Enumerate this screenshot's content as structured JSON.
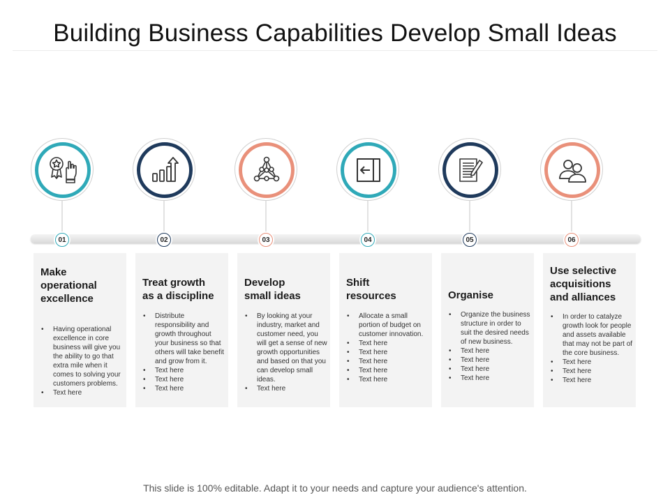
{
  "title": "Building Business Capabilities Develop Small Ideas",
  "footer": "This slide is 100% editable. Adapt it to your needs and capture your audience's attention.",
  "colors": {
    "teal": "#2fa9b8",
    "navy": "#1f3a5c",
    "salmon": "#e9907a",
    "card": "#f3f3f3"
  },
  "steps": [
    {
      "number": "01",
      "icon": "award-badge-icon",
      "heading": [
        "Make",
        "operational",
        "excellence"
      ],
      "description": "Having operational excellence in core business will give you the ability to go that extra mile when it comes to solving your customers problems.",
      "extras": [
        "Text here"
      ]
    },
    {
      "number": "02",
      "icon": "growth-chart-icon",
      "heading": [
        "Treat growth",
        "as a discipline"
      ],
      "description": "Distribute responsibility and growth throughout your business so that others will take benefit and grow from it.",
      "extras": [
        "Text here",
        "Text here",
        "Text here"
      ]
    },
    {
      "number": "03",
      "icon": "network-triangle-icon",
      "heading": [
        "Develop",
        "small ideas"
      ],
      "description": "By looking at your industry, market and customer need, you will get a sense of new growth opportunities and based on that you can develop small ideas.",
      "extras": [
        "Text here"
      ]
    },
    {
      "number": "04",
      "icon": "shift-arrow-icon",
      "heading": [
        "Shift",
        "resources"
      ],
      "description": "Allocate a small portion of budget on customer innovation.",
      "extras": [
        "Text here",
        "Text here",
        "Text here",
        "Text here",
        "Text here"
      ]
    },
    {
      "number": "05",
      "icon": "document-pen-icon",
      "heading": [
        "Organise"
      ],
      "description": "Organize the business structure in order to suit the desired needs of new business.",
      "extras": [
        "Text here",
        "Text here",
        "Text here",
        "Text here"
      ]
    },
    {
      "number": "06",
      "icon": "people-icon",
      "heading": [
        "Use selective",
        "acquisitions",
        "and alliances"
      ],
      "description": "In order to catalyze growth look for people and assets available that may not be part of the core business.",
      "extras": [
        "Text here",
        "Text here",
        "Text here"
      ]
    }
  ]
}
